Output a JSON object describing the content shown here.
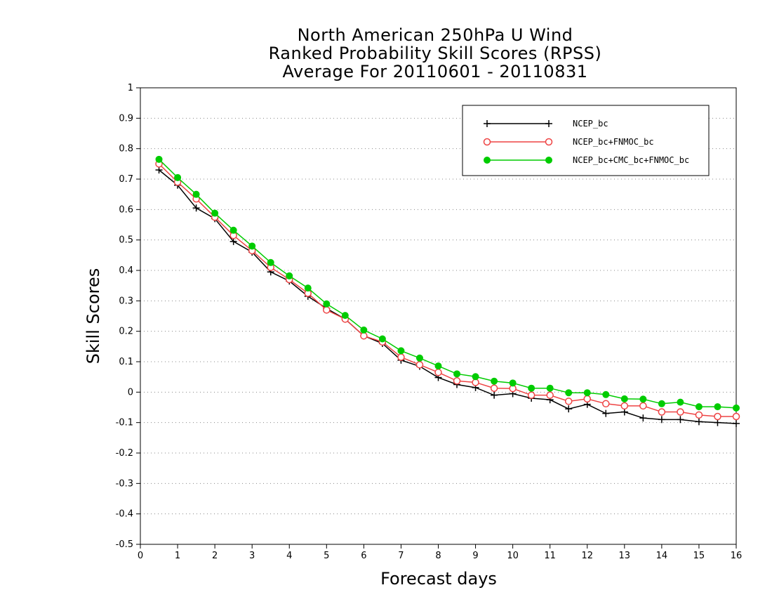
{
  "chart_data": {
    "type": "line",
    "title_lines": [
      "North American 250hPa U Wind",
      "Ranked Probability Skill Scores (RPSS)",
      "Average For 20110601 - 20110831"
    ],
    "xlabel": "Forecast days",
    "ylabel": "Skill Scores",
    "xlim": [
      0,
      16
    ],
    "ylim": [
      -0.5,
      1
    ],
    "x_ticks": [
      0,
      1,
      2,
      3,
      4,
      5,
      6,
      7,
      8,
      9,
      10,
      11,
      12,
      13,
      14,
      15,
      16
    ],
    "y_ticks": [
      -0.5,
      -0.4,
      -0.3,
      -0.2,
      -0.1,
      0,
      0.1,
      0.2,
      0.3,
      0.4,
      0.5,
      0.6,
      0.7,
      0.8,
      0.9,
      1
    ],
    "grid": "horizontal dotted",
    "legend_position": "top-right",
    "x": [
      0.5,
      1,
      1.5,
      2,
      2.5,
      3,
      3.5,
      4,
      4.5,
      5,
      5.5,
      6,
      6.5,
      7,
      7.5,
      8,
      8.5,
      9,
      9.5,
      10,
      10.5,
      11,
      11.5,
      12,
      12.5,
      13,
      13.5,
      14,
      14.5,
      15,
      15.5,
      16
    ],
    "series": [
      {
        "name": "NCEP_bc",
        "color": "#000000",
        "marker": "plus",
        "values": [
          0.73,
          0.68,
          0.605,
          0.57,
          0.495,
          0.46,
          0.395,
          0.365,
          0.315,
          0.275,
          0.24,
          0.185,
          0.16,
          0.105,
          0.085,
          0.048,
          0.025,
          0.015,
          -0.01,
          -0.005,
          -0.02,
          -0.025,
          -0.055,
          -0.04,
          -0.07,
          -0.065,
          -0.085,
          -0.09,
          -0.09,
          -0.097,
          -0.1,
          -0.103
        ]
      },
      {
        "name": "NCEP_bc+FNMOC_bc",
        "color": "#ee4444",
        "marker": "circle-open",
        "values": [
          0.75,
          0.69,
          0.635,
          0.575,
          0.515,
          0.465,
          0.41,
          0.37,
          0.325,
          0.27,
          0.24,
          0.185,
          0.165,
          0.115,
          0.09,
          0.065,
          0.037,
          0.032,
          0.013,
          0.012,
          -0.01,
          -0.01,
          -0.03,
          -0.022,
          -0.038,
          -0.045,
          -0.045,
          -0.065,
          -0.065,
          -0.075,
          -0.08,
          -0.08
        ]
      },
      {
        "name": "NCEP_bc+CMC_bc+FNMOC_bc",
        "color": "#00cc00",
        "marker": "circle-filled",
        "values": [
          0.765,
          0.705,
          0.65,
          0.588,
          0.532,
          0.48,
          0.426,
          0.382,
          0.342,
          0.29,
          0.252,
          0.204,
          0.175,
          0.136,
          0.112,
          0.086,
          0.06,
          0.051,
          0.036,
          0.03,
          0.013,
          0.013,
          -0.002,
          -0.002,
          -0.008,
          -0.022,
          -0.023,
          -0.038,
          -0.033,
          -0.048,
          -0.048,
          -0.052
        ]
      }
    ]
  }
}
